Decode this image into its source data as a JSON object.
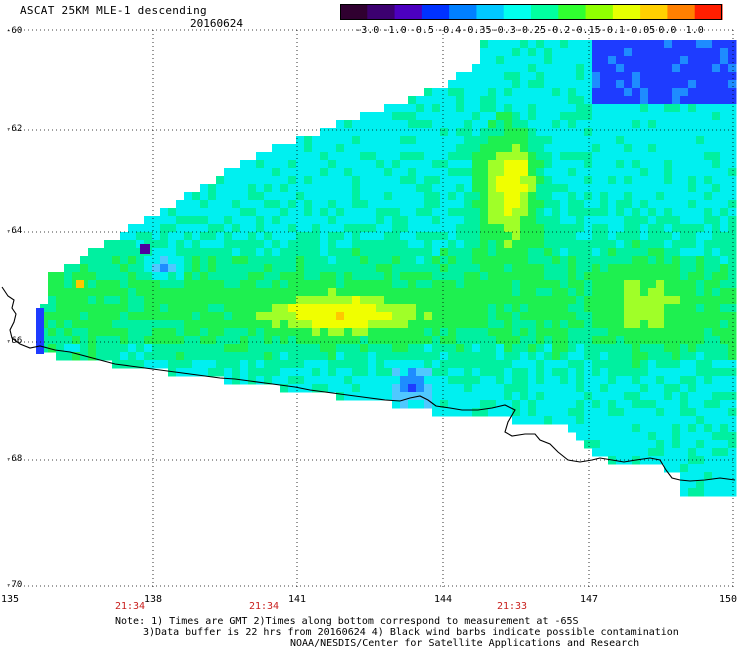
{
  "header": {
    "title": "ASCAT 25KM MLE-1 descending",
    "date": "20160624"
  },
  "colorbar": {
    "labels": [
      "-3.0",
      "-1.0",
      "-0.5",
      "-0.4",
      "-0.35",
      "-0.3",
      "-0.25",
      "-0.2",
      "-0.15",
      "-0.1",
      "-0.05",
      "0.0",
      "1.0"
    ],
    "colors": [
      "#300030",
      "#3c0070",
      "#4c00c0",
      "#0032ff",
      "#0080ff",
      "#00c8ff",
      "#00ffee",
      "#00ffa0",
      "#30ff30",
      "#90ff00",
      "#e6ff00",
      "#ffd000",
      "#ff8000",
      "#ff1e00"
    ]
  },
  "map": {
    "lat_labels": [
      "-60",
      "-62",
      "-64",
      "-66",
      "-68",
      "-70"
    ],
    "lon_labels": [
      "135",
      "138",
      "141",
      "144",
      "147",
      "150"
    ],
    "time_labels": [
      "21:34",
      "21:34",
      "21:33"
    ],
    "gridlines": true,
    "palette_colors": {
      "deep_blue": "#1e3cff",
      "blue": "#1e8cff",
      "light_blue": "#50c8ff",
      "cyan": "#00f0f0",
      "aqua_green": "#00f0a0",
      "green": "#1ef050",
      "yellow_green": "#a0ff28",
      "yellow": "#f0ff00",
      "orange": "#ffc800",
      "purple": "#5000a0"
    },
    "coastline_color": "#000000"
  },
  "notes": {
    "line1": "Note: 1) Times are GMT 2)Times along bottom correspond to measurement at -65S",
    "line2": "3)Data buffer is 22 hrs from 20160624 4) Black wind barbs indicate possible contamination",
    "line3": "NOAA/NESDIS/Center for Satellite Applications and Research"
  }
}
